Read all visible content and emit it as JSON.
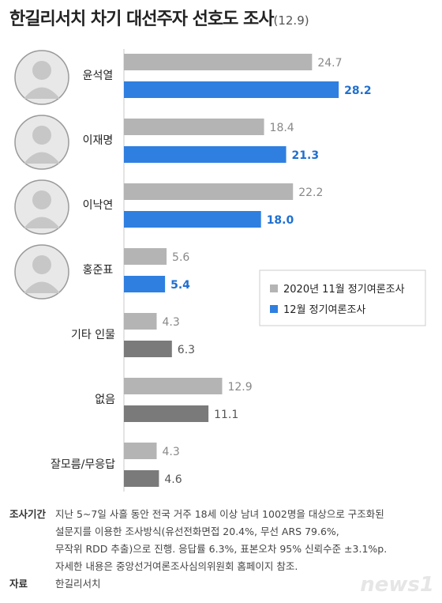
{
  "title": "한길리서치 차기 대선주자 선호도 조사",
  "title_date": "(12.9)",
  "colors": {
    "nov": "#b4b4b4",
    "dec_candidate": "#2f7fe0",
    "dec_other": "#7a7a7a",
    "nov_text": "#888888",
    "dec_text_blue": "#1f6fd0",
    "dec_text_gray": "#555555",
    "axis": "#c8c8c8"
  },
  "chart_data": {
    "type": "bar",
    "orientation": "horizontal",
    "categories": [
      "윤석열",
      "이재명",
      "이낙연",
      "홍준표",
      "기타 인물",
      "없음",
      "잘모름/무응답"
    ],
    "series": [
      {
        "name": "2020년 11월 정기여론조사",
        "values": [
          24.7,
          18.4,
          22.2,
          5.6,
          4.3,
          12.9,
          4.3
        ]
      },
      {
        "name": "12월 정기여론조사",
        "values": [
          28.2,
          21.3,
          18.0,
          5.4,
          6.3,
          11.1,
          4.6
        ]
      }
    ],
    "value_labels": {
      "nov": [
        "24.7",
        "18.4",
        "22.2",
        "5.6",
        "4.3",
        "12.9",
        "4.3"
      ],
      "dec": [
        "28.2",
        "21.3",
        "18.0",
        "5.4",
        "6.3",
        "11.1",
        "4.6"
      ]
    },
    "xlim": [
      0,
      40
    ],
    "grid": false,
    "legend_position": "right",
    "photo_icons": [
      "person-photo-icon",
      "person-photo-icon",
      "person-photo-icon",
      "person-photo-icon",
      null,
      null,
      null
    ]
  },
  "notes": {
    "method_label": "조사기간",
    "method_lines": [
      "지난 5~7일 사흘 동안 전국 거주 18세 이상 남녀 1002명을 대상으로 구조화된",
      "설문지를 이용한 조사방식(유선전화면접 20.4%, 무선 ARS 79.6%,",
      "무작위 RDD 추출)으로 진행. 응답률 6.3%, 표본오차 95% 신뢰수준 ±3.1%p.",
      "자세한 내용은 중앙선거여론조사심의위원회 홈페이지 참조."
    ],
    "source_label": "자료",
    "source_text": "한길리서치"
  },
  "logo": "news1"
}
